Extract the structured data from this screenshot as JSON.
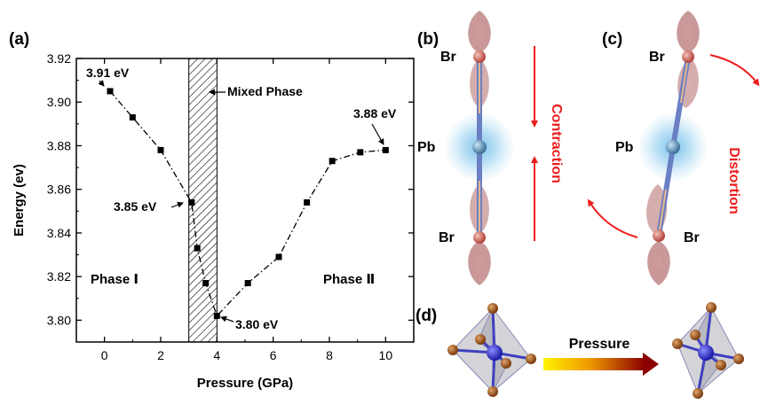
{
  "chart_data": {
    "type": "line",
    "panel_label": "(a)",
    "xlabel": "Pressure (GPa)",
    "ylabel": "Energy (ev)",
    "xlim": [
      -1,
      11
    ],
    "ylim": [
      3.79,
      3.92
    ],
    "xticks": [
      0,
      2,
      4,
      6,
      8,
      10
    ],
    "yticks": [
      3.8,
      3.82,
      3.84,
      3.86,
      3.88,
      3.9,
      3.92
    ],
    "line_style": "dash-dot",
    "marker": "square",
    "series": [
      {
        "x": [
          0.2,
          1.0,
          2.0,
          3.1,
          3.3,
          3.6,
          4.0,
          5.1,
          6.2,
          7.2,
          8.1,
          9.1,
          10.0
        ],
        "y": [
          3.905,
          3.893,
          3.878,
          3.854,
          3.833,
          3.817,
          3.802,
          3.817,
          3.829,
          3.854,
          3.873,
          3.877,
          3.878
        ]
      }
    ],
    "shaded_region": {
      "x_range": [
        3.0,
        4.0
      ],
      "label": "Mixed Phase"
    },
    "annotations": [
      {
        "text": "3.91 eV",
        "x": 0.2,
        "y": 3.905
      },
      {
        "text": "3.85 eV",
        "x": 3.1,
        "y": 3.854
      },
      {
        "text": "3.80 eV",
        "x": 4.0,
        "y": 3.802
      },
      {
        "text": "3.88 eV",
        "x": 10.0,
        "y": 3.878
      }
    ],
    "phase_labels": [
      "Phase Ⅰ",
      "Phase Ⅱ"
    ]
  },
  "panels": {
    "b": {
      "label": "(b)",
      "atom_top": "Br",
      "atom_mid": "Pb",
      "atom_bottom": "Br",
      "arrow_text": "Contraction"
    },
    "c": {
      "label": "(c)",
      "atom_top": "Br",
      "atom_mid": "Pb",
      "atom_bottom": "Br",
      "arrow_text": "Distortion"
    },
    "d": {
      "label": "(d)",
      "arrow_text": "Pressure"
    }
  },
  "colors": {
    "arrow_red": "#ee1c1c",
    "orbital": "#b97272",
    "pb_glow": "#7cc4ea",
    "pb_atom": "#4c86b5",
    "bond": "#6b7fc4",
    "br_atom": "#c0504d",
    "octahedron_face": "#b0b0b8",
    "ligand": "#8b4513",
    "center_atom": "#2b2bcc",
    "gradient_start": "#ffee00",
    "gradient_end": "#990000"
  }
}
